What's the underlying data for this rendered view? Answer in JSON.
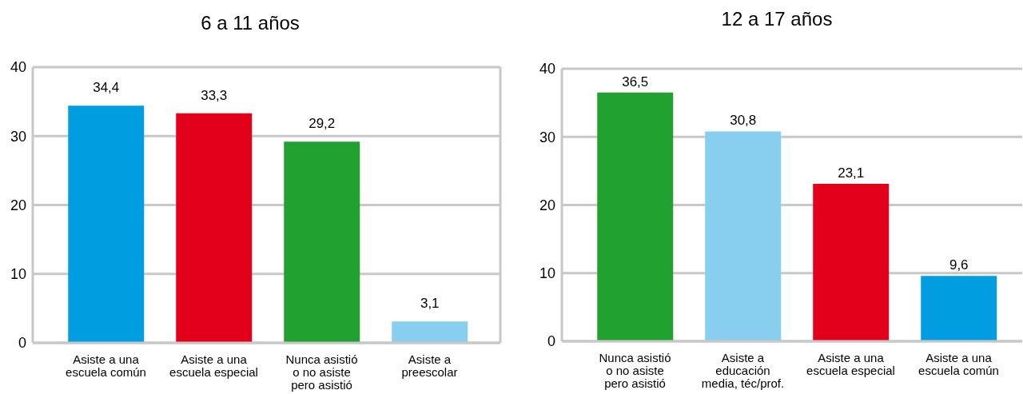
{
  "chart_data": [
    {
      "type": "bar",
      "title": "6 a 11 años",
      "categories": [
        "Asiste a una escuela común",
        "Asiste a una escuela especial",
        "Nunca asistió o no asiste pero asistió",
        "Asiste a preescolar"
      ],
      "values": [
        34.4,
        33.3,
        29.2,
        3.1
      ],
      "colors": [
        "#009ee0",
        "#e2001a",
        "#21a12f",
        "#87ceef"
      ],
      "value_labels": [
        "34,4",
        "33,3",
        "29,2",
        "3,1"
      ],
      "ylim": [
        0,
        40
      ],
      "yticks": [
        0,
        10,
        20,
        30,
        40
      ],
      "grid": "y"
    },
    {
      "type": "bar",
      "title": "12 a 17 años",
      "categories": [
        "Nunca asistió o no asiste pero asistió",
        "Asiste a educación media, téc/prof.",
        "Asiste a una escuela especial",
        "Asiste a una escuela común"
      ],
      "values": [
        36.5,
        30.8,
        23.1,
        9.6
      ],
      "colors": [
        "#21a12f",
        "#87ceef",
        "#e2001a",
        "#009ee0"
      ],
      "value_labels": [
        "36,5",
        "30,8",
        "23,1",
        "9,6"
      ],
      "ylim": [
        0,
        40
      ],
      "yticks": [
        0,
        10,
        20,
        30,
        40
      ],
      "grid": "y"
    }
  ]
}
